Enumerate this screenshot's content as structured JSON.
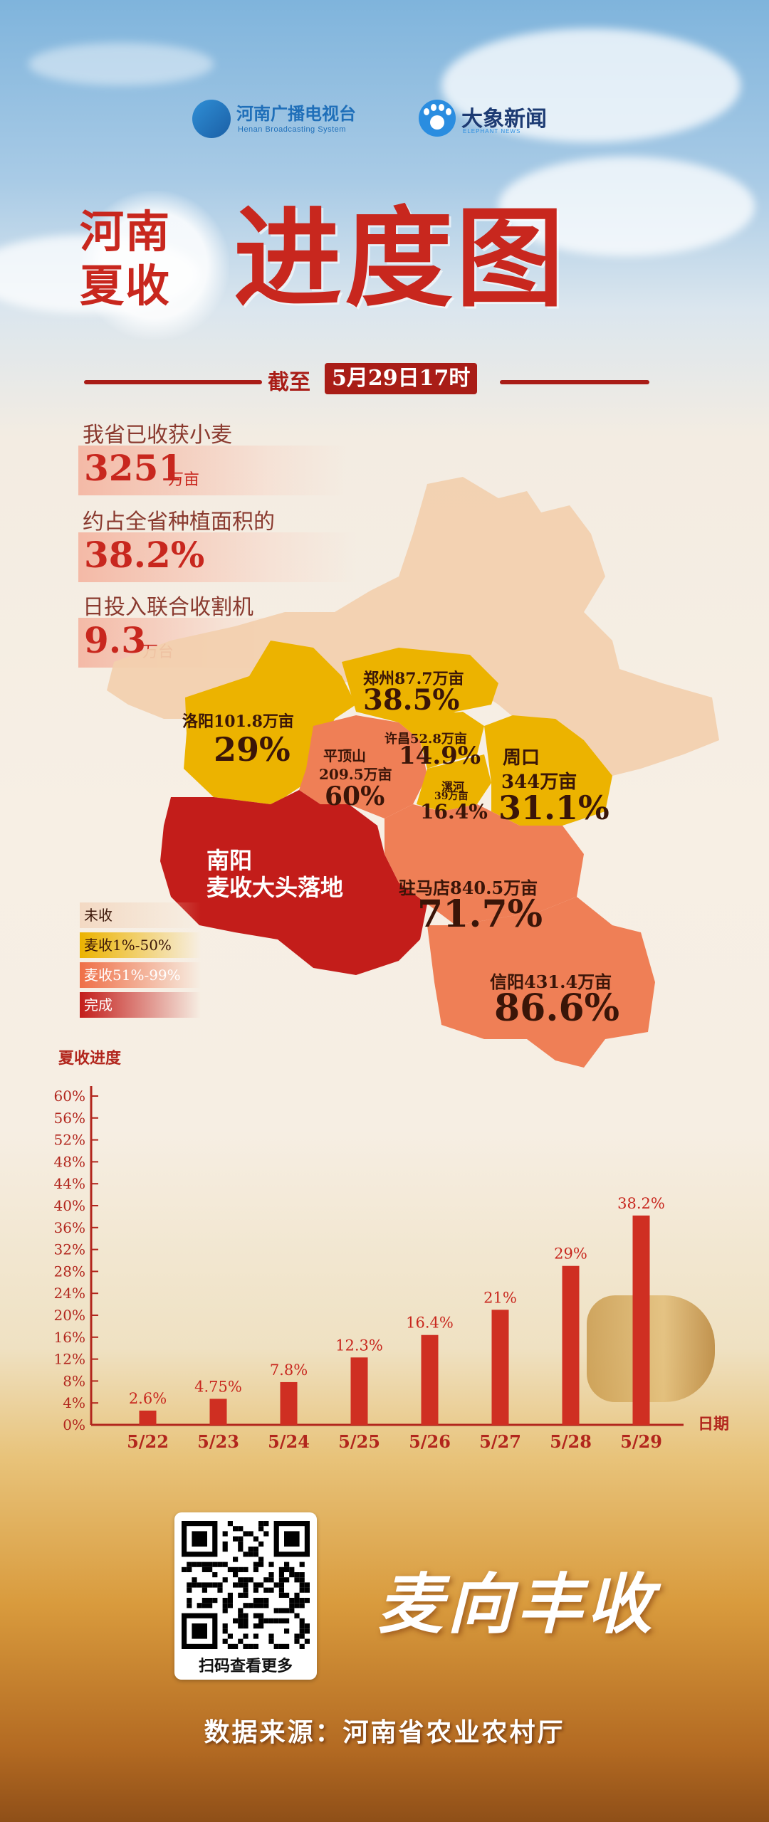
{
  "header": {
    "logo_hntv_cn": "河南广播电视台",
    "logo_hntv_en": "Henan Broadcasting System",
    "logo_elephant_cn": "大象新闻",
    "logo_elephant_en": "ELEPHANT NEWS",
    "title_line1": "河南",
    "title_line2": "夏收",
    "title_main": "进度图",
    "date_prefix": "截至",
    "date_value": "5月29日17时"
  },
  "stats": [
    {
      "label": "我省已收获小麦",
      "value": "3251",
      "unit": "万亩"
    },
    {
      "label": "约占全省种植面积的",
      "value": "38.2%",
      "unit": ""
    },
    {
      "label": "日投入联合收割机",
      "value": "9.3",
      "unit": "万台"
    }
  ],
  "map": {
    "regions": [
      {
        "name": "郑州87.7万亩",
        "pct": "38.5%"
      },
      {
        "name": "洛阳101.8万亩",
        "pct": "29%"
      },
      {
        "name": "许昌52.8万亩",
        "pct": "14.9%"
      },
      {
        "name": "平顶山",
        "name2": "209.5万亩",
        "pct": "60%"
      },
      {
        "name": "漯河",
        "name2": "39万亩",
        "pct": "16.4%"
      },
      {
        "name": "周口",
        "name2": "344万亩",
        "pct": "31.1%"
      },
      {
        "name": "南阳",
        "name2": "麦收大头落地",
        "pct": ""
      },
      {
        "name": "驻马店840.5万亩",
        "pct": "71.7%"
      },
      {
        "name": "信阳431.4万亩",
        "pct": "86.6%"
      }
    ],
    "colors": {
      "none": "#f2cfae",
      "partial": "#ecb300",
      "most": "#ef7f56",
      "done": "#c31d1a"
    }
  },
  "legend": [
    {
      "label": "未收",
      "color": "#f3d9c3"
    },
    {
      "label": "麦收1%-50%",
      "color": "#ecb300"
    },
    {
      "label": "麦收51%-99%",
      "color": "#ef6f47"
    },
    {
      "label": "完成",
      "color": "#c31d1a"
    }
  ],
  "chart_data": {
    "type": "bar",
    "title": "",
    "ylabel": "夏收进度",
    "xlabel": "日期",
    "categories": [
      "5/22",
      "5/23",
      "5/24",
      "5/25",
      "5/26",
      "5/27",
      "5/28",
      "5/29"
    ],
    "values": [
      2.6,
      4.75,
      7.8,
      12.3,
      16.4,
      21,
      29,
      38.2
    ],
    "value_labels": [
      "2.6%",
      "4.75%",
      "7.8%",
      "12.3%",
      "16.4%",
      "21%",
      "29%",
      "38.2%"
    ],
    "ylim": [
      0,
      60
    ],
    "yticks": [
      "0%",
      "4%",
      "8%",
      "12%",
      "16%",
      "20%",
      "24%",
      "28%",
      "32%",
      "36%",
      "40%",
      "44%",
      "48%",
      "52%",
      "56%",
      "60%"
    ],
    "grid": false,
    "bar_color": "#cf2f22"
  },
  "footer": {
    "qr_caption": "扫码查看更多",
    "slogan": "麦向丰收",
    "source": "数据来源：河南省农业农村厅"
  }
}
